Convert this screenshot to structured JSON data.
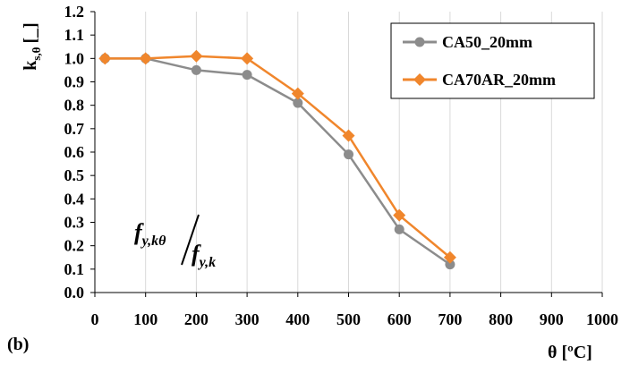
{
  "chart_data": {
    "type": "line",
    "panel_label": "(b)",
    "xlabel": "θ [ºC]",
    "ylabel_main": "k",
    "ylabel_sub": "s,θ",
    "ylabel_unit": "[_]",
    "xlim": [
      0,
      1000
    ],
    "ylim": [
      0.0,
      1.2
    ],
    "x_ticks": [
      "0",
      "100",
      "200",
      "300",
      "400",
      "500",
      "600",
      "700",
      "800",
      "900",
      "1000"
    ],
    "y_ticks": [
      "0.0",
      "0.1",
      "0.2",
      "0.3",
      "0.4",
      "0.5",
      "0.6",
      "0.7",
      "0.8",
      "0.9",
      "1.0",
      "1.1",
      "1.2"
    ],
    "grid": "vertical",
    "legend_position": "top-right",
    "annotation": {
      "num_main": "f",
      "num_sub": "y,kθ",
      "den_main": "f",
      "den_sub": "y,k"
    },
    "series": [
      {
        "name": "CA50_20mm",
        "color": "#8c8c8c",
        "marker": "circle",
        "x": [
          20,
          100,
          200,
          300,
          400,
          500,
          600,
          700
        ],
        "y": [
          1.0,
          1.0,
          0.95,
          0.93,
          0.81,
          0.59,
          0.27,
          0.12
        ]
      },
      {
        "name": "CA70AR_20mm",
        "color": "#f0862c",
        "marker": "diamond",
        "x": [
          20,
          100,
          200,
          300,
          400,
          500,
          600,
          700
        ],
        "y": [
          1.0,
          1.0,
          1.01,
          1.0,
          0.85,
          0.67,
          0.33,
          0.15
        ]
      }
    ]
  }
}
